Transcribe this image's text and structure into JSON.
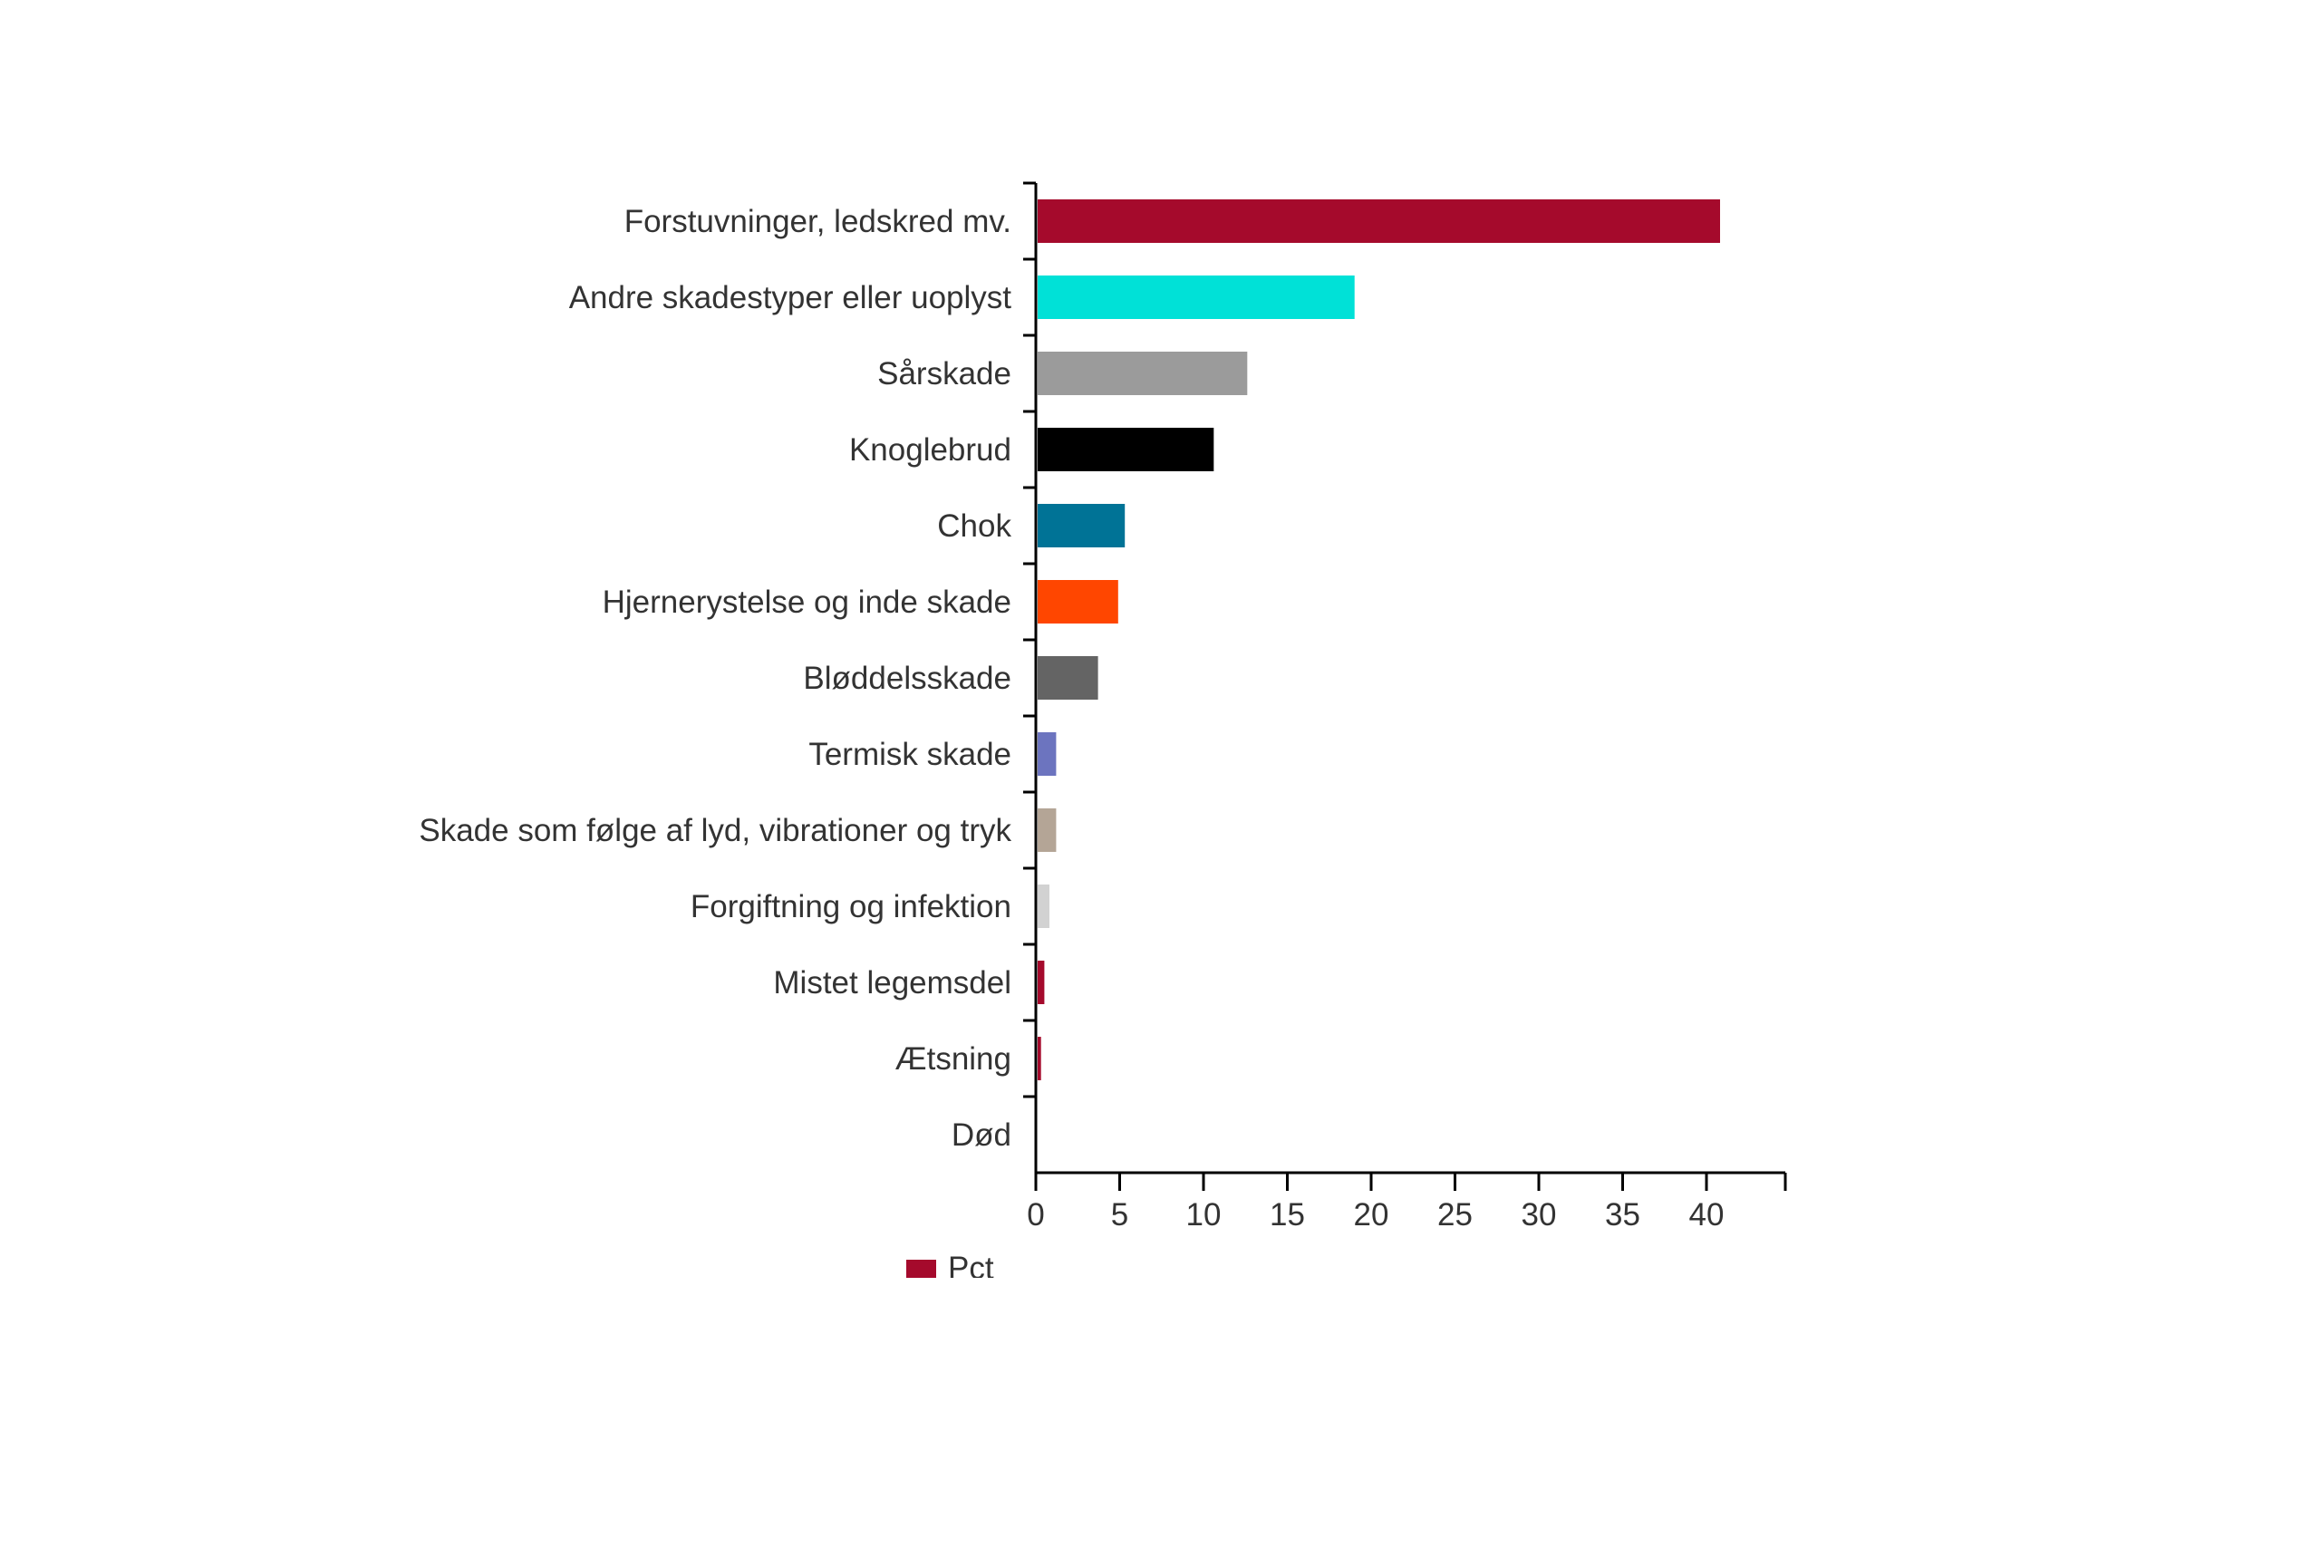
{
  "chart_data": {
    "type": "bar",
    "orientation": "horizontal",
    "categories": [
      "Forstuvninger, ledskred mv.",
      "Andre skadestyper eller uoplyst",
      "Sårskade",
      "Knoglebrud",
      "Chok",
      "Hjernerystelse og inde skade",
      "Bløddelsskade",
      "Termisk skade",
      "Skade som følge af lyd, vibrationer og tryk",
      "Forgiftning og infektion",
      "Mistet legemsdel",
      "Ætsning",
      "Død"
    ],
    "series": [
      {
        "name": "Pct",
        "values": [
          40.7,
          18.9,
          12.5,
          10.5,
          5.2,
          4.8,
          3.6,
          1.1,
          1.1,
          0.7,
          0.4,
          0.2,
          0.0
        ]
      }
    ],
    "bar_colors": [
      "#a50a2c",
      "#00e1d7",
      "#9b9b9b",
      "#000000",
      "#007396",
      "#ff4600",
      "#646464",
      "#6c74bf",
      "#b4a596",
      "#d2d2d2",
      "#a50a2c",
      "#a50a2c",
      "#a50a2c"
    ],
    "x_ticks": [
      0,
      5,
      10,
      15,
      20,
      25,
      30,
      35,
      40
    ],
    "xlim": [
      0,
      44.7
    ],
    "legend": {
      "position": "bottom-left",
      "color": "#a50a2c"
    },
    "grid": false
  }
}
